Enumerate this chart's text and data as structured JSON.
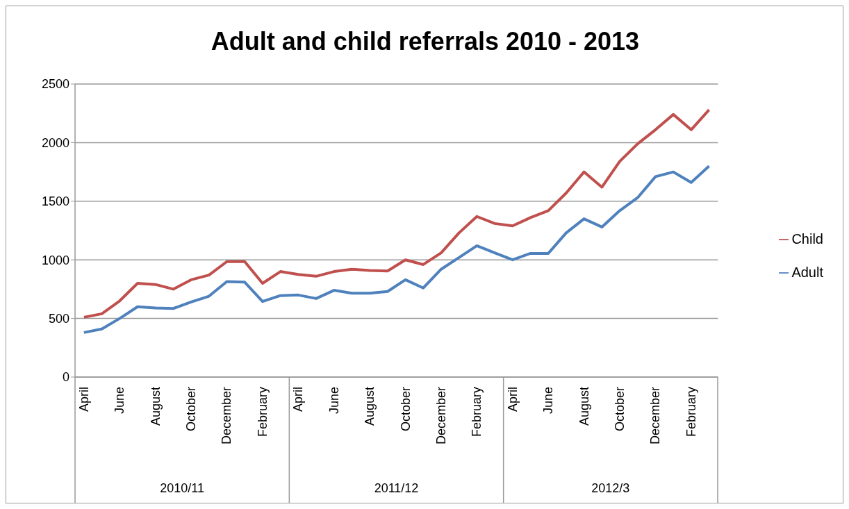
{
  "chart_data": {
    "type": "line",
    "title": "Adult and child referrals 2010 - 2013",
    "categories": [
      "April",
      null,
      "June",
      null,
      "August",
      null,
      "October",
      null,
      "December",
      null,
      "February",
      null,
      "April",
      null,
      "June",
      null,
      "August",
      null,
      "October",
      null,
      "December",
      null,
      "February",
      null,
      "April",
      null,
      "June",
      null,
      "August",
      null,
      "October",
      null,
      "December",
      null,
      "February",
      null
    ],
    "series": [
      {
        "name": "Child",
        "color": "#c0504d",
        "values": [
          510,
          540,
          650,
          800,
          790,
          750,
          830,
          870,
          985,
          985,
          800,
          900,
          875,
          860,
          900,
          920,
          910,
          905,
          1000,
          960,
          1060,
          1230,
          1370,
          1310,
          1290,
          1360,
          1420,
          1570,
          1750,
          1620,
          1840,
          1990,
          2110,
          2240,
          2110,
          2280
        ]
      },
      {
        "name": "Adult",
        "color": "#4f81bd",
        "values": [
          380,
          410,
          500,
          600,
          590,
          585,
          640,
          690,
          815,
          810,
          645,
          695,
          700,
          670,
          740,
          715,
          715,
          730,
          830,
          760,
          920,
          1020,
          1120,
          1060,
          1000,
          1055,
          1055,
          1230,
          1350,
          1280,
          1420,
          1530,
          1710,
          1750,
          1660,
          1800
        ]
      }
    ],
    "annotations": [
      "2010/11",
      "2011/12",
      "2012/3"
    ],
    "ylim": [
      0,
      2500
    ],
    "yticks": [
      0,
      500,
      1000,
      1500,
      2000,
      2500
    ],
    "grid": "y",
    "legend": "right",
    "marker": "none",
    "line_style": "solid"
  }
}
